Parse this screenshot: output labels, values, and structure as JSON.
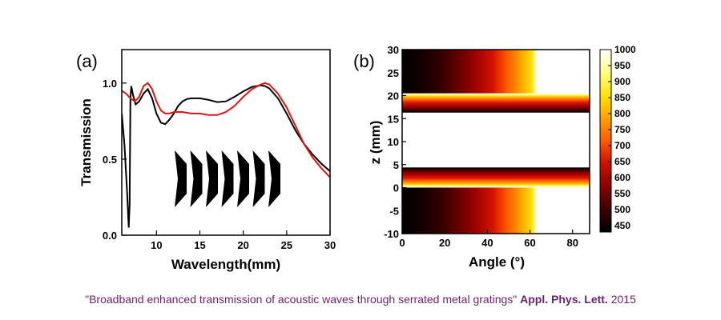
{
  "colors": {
    "line_black": "#000000",
    "line_red": "#e01414",
    "caption": "#6b1f6e",
    "colormap": [
      "#000000",
      "#3a0000",
      "#8a0000",
      "#d21000",
      "#ff5a00",
      "#ff9f00",
      "#ffe000",
      "#ffff80",
      "#ffffff"
    ]
  },
  "chart_data": [
    {
      "type": "line",
      "panel_label": "(a)",
      "xlabel": "Wavelength(mm)",
      "ylabel": "Transmission",
      "xlim": [
        6,
        30
      ],
      "ylim": [
        0,
        1.22
      ],
      "xticks": [
        "10",
        "15",
        "20",
        "25",
        "30"
      ],
      "yticks": [
        "0.0",
        "0.5",
        "1.0"
      ],
      "grid": false,
      "legend": "none",
      "inset": "serrated grating profile (7 teeth)",
      "series": [
        {
          "color": "#000000",
          "x": [
            6,
            6.3,
            6.6,
            6.8,
            6.9,
            7.0,
            7.1,
            7.3,
            7.6,
            8.0,
            8.5,
            9.0,
            9.5,
            10.0,
            10.5,
            11.0,
            11.5,
            12.0,
            12.5,
            13.0,
            13.5,
            14.0,
            15.0,
            16.0,
            17.0,
            18.0,
            19.0,
            20.0,
            21.0,
            22.0,
            22.5,
            23.0,
            24.0,
            25.0,
            26.0,
            27.0,
            28.0,
            29.0,
            30.0
          ],
          "y": [
            0.8,
            0.6,
            0.3,
            0.05,
            0.2,
            0.9,
            0.98,
            0.92,
            0.86,
            0.88,
            0.93,
            0.96,
            0.9,
            0.8,
            0.74,
            0.73,
            0.76,
            0.8,
            0.85,
            0.88,
            0.895,
            0.9,
            0.9,
            0.89,
            0.875,
            0.88,
            0.91,
            0.945,
            0.975,
            0.985,
            0.98,
            0.965,
            0.9,
            0.8,
            0.69,
            0.6,
            0.53,
            0.47,
            0.42
          ]
        },
        {
          "color": "#e01414",
          "x": [
            6,
            6.5,
            7.0,
            7.5,
            8.0,
            8.5,
            9.0,
            9.5,
            10.0,
            10.5,
            11.0,
            11.5,
            12.0,
            13.0,
            14.0,
            15.0,
            16.0,
            17.0,
            18.0,
            19.0,
            20.0,
            21.0,
            22.0,
            22.5,
            23.0,
            24.0,
            25.0,
            26.0,
            27.0,
            28.0,
            29.0,
            30.0
          ],
          "y": [
            0.95,
            0.93,
            0.9,
            0.88,
            0.91,
            0.98,
            1.0,
            0.96,
            0.88,
            0.82,
            0.8,
            0.8,
            0.81,
            0.81,
            0.8,
            0.8,
            0.79,
            0.79,
            0.81,
            0.85,
            0.91,
            0.96,
            0.99,
            1.0,
            0.99,
            0.93,
            0.84,
            0.72,
            0.6,
            0.51,
            0.44,
            0.38
          ]
        }
      ]
    },
    {
      "type": "heatmap",
      "panel_label": "(b)",
      "xlabel": "Angle (°)",
      "ylabel": "z (mm)",
      "xlim": [
        0,
        88
      ],
      "ylim": [
        -10,
        30
      ],
      "xticks": [
        "0",
        "20",
        "40",
        "60",
        "80"
      ],
      "yticks": [
        "-10",
        "-5",
        "0",
        "5",
        "10",
        "15",
        "20",
        "25",
        "30"
      ],
      "colorbar": {
        "min": 430,
        "max": 1000,
        "ticks": [
          "450",
          "500",
          "550",
          "600",
          "650",
          "700",
          "750",
          "800",
          "850",
          "900",
          "950",
          "1000"
        ]
      },
      "regions": [
        {
          "z": [
            -10,
            0
          ],
          "profile": "angle",
          "note": "dark at 0°, rising to ~1000 near 64°"
        },
        {
          "z": [
            0,
            4.4
          ],
          "profile": "z-gradient",
          "note": "dark at 0 mm, bright near 4.4 mm"
        },
        {
          "z": [
            4.4,
            16.3
          ],
          "profile": "uniform",
          "value": 1000
        },
        {
          "z": [
            16.3,
            20.5
          ],
          "profile": "z-gradient",
          "note": "bright near 16.3 mm, dark at 20.5 mm"
        },
        {
          "z": [
            20.5,
            30
          ],
          "profile": "angle",
          "note": "dark at 0°, rising to ~1000 near 64°"
        }
      ]
    }
  ],
  "caption": {
    "text": "\"Broadband enhanced transmission of acoustic waves through serrated metal gratings\"",
    "journal": "Appl. Phys. Lett.",
    "year": "2015"
  }
}
